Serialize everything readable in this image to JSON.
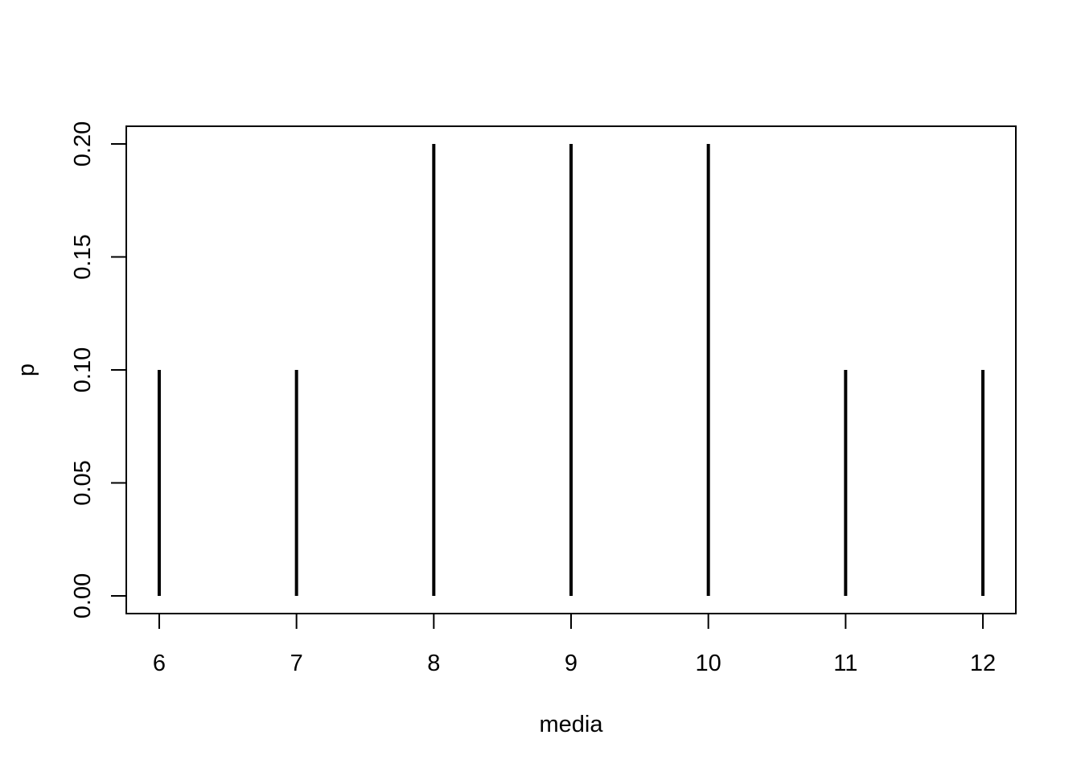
{
  "chart_data": {
    "type": "bar",
    "subtype": "spike",
    "title": "",
    "xlabel": "media",
    "ylabel": "p",
    "x": [
      6,
      7,
      8,
      9,
      10,
      11,
      12
    ],
    "values": [
      0.1,
      0.1,
      0.2,
      0.2,
      0.2,
      0.1,
      0.1
    ],
    "xlim": [
      5.76,
      12.24
    ],
    "ylim": [
      0,
      0.2
    ],
    "x_ticks": [
      6,
      7,
      8,
      9,
      10,
      11,
      12
    ],
    "x_tick_labels": [
      "6",
      "7",
      "8",
      "9",
      "10",
      "11",
      "12"
    ],
    "y_ticks": [
      0,
      0.05,
      0.1,
      0.15,
      0.2
    ],
    "y_tick_labels": [
      "0.00",
      "0.05",
      "0.10",
      "0.15",
      "0.20"
    ],
    "grid": false,
    "legend": "none",
    "colors": {
      "line": "#000000",
      "axis": "#000000",
      "background": "#ffffff"
    }
  }
}
